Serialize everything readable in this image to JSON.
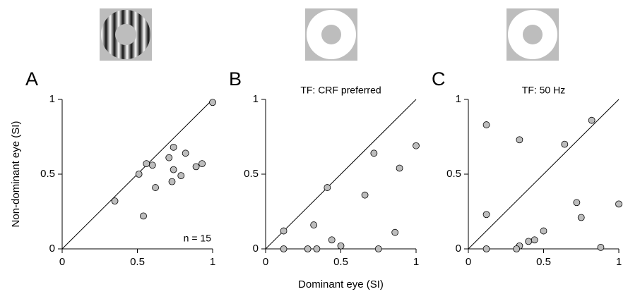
{
  "chart_data": [
    {
      "type": "scatter",
      "label": "A",
      "y_label": "Non-dominant eye (SI)",
      "annotation": "n = 15",
      "x": [
        1.0,
        0.35,
        0.51,
        0.56,
        0.6,
        0.54,
        0.62,
        0.71,
        0.74,
        0.82,
        0.74,
        0.79,
        0.73,
        0.89,
        0.93
      ],
      "y": [
        0.98,
        0.32,
        0.5,
        0.57,
        0.56,
        0.22,
        0.41,
        0.61,
        0.68,
        0.64,
        0.53,
        0.49,
        0.45,
        0.55,
        0.57
      ],
      "xlim": [
        0,
        1
      ],
      "ylim": [
        0,
        1
      ],
      "xticks": [
        0,
        0.5,
        1
      ],
      "yticks": [
        0,
        0.5,
        1
      ],
      "color": "#bdbdbd"
    },
    {
      "type": "scatter",
      "label": "B",
      "subtitle": "TF: CRF preferred",
      "x_label": "Dominant eye (SI)",
      "x": [
        0.41,
        0.72,
        1.0,
        0.89,
        0.66,
        0.12,
        0.12,
        0.32,
        0.28,
        0.34,
        0.44,
        0.5,
        0.75,
        0.86
      ],
      "y": [
        0.41,
        0.64,
        0.69,
        0.54,
        0.36,
        0.12,
        0,
        0.16,
        0,
        0,
        0.06,
        0.02,
        0,
        0.11
      ],
      "xlim": [
        0,
        1
      ],
      "ylim": [
        0,
        1
      ],
      "xticks": [
        0,
        0.5,
        1
      ],
      "yticks": [
        0,
        0.5,
        1
      ],
      "color": "#bdbdbd"
    },
    {
      "type": "scatter",
      "label": "C",
      "subtitle": "TF: 50 Hz",
      "x": [
        0.12,
        0.34,
        0.82,
        0.64,
        0.12,
        0.12,
        0.72,
        0.75,
        1.0,
        0.5,
        0.44,
        0.4,
        0.34,
        0.32,
        0.88
      ],
      "y": [
        0.83,
        0.73,
        0.86,
        0.7,
        0.23,
        0,
        0.31,
        0.21,
        0.3,
        0.12,
        0.06,
        0.05,
        0.02,
        0,
        0.01
      ],
      "xlim": [
        0,
        1
      ],
      "ylim": [
        0,
        1
      ],
      "xticks": [
        0,
        0.5,
        1
      ],
      "yticks": [
        0,
        0.5,
        1
      ],
      "color": "#bdbdbd"
    }
  ]
}
